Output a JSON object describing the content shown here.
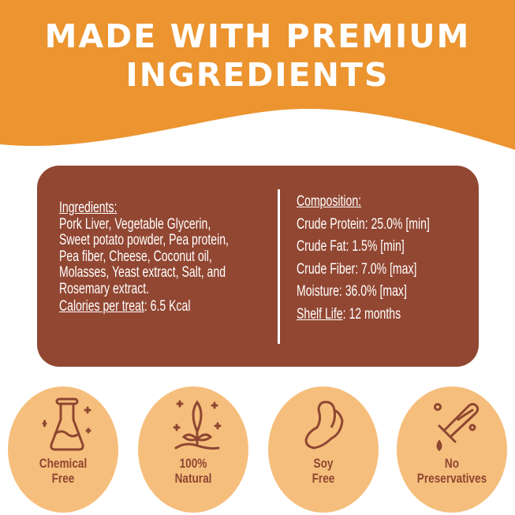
{
  "header": {
    "title_line1": "MADE WITH PREMIUM",
    "title_line2": "INGREDIENTS",
    "bg_color": "#EC9430"
  },
  "panel": {
    "bg_color": "#924732",
    "ingredients": {
      "heading": "Ingredients:",
      "lines": [
        "Pork Liver, Vegetable Glycerin,",
        "Sweet potato powder, Pea protein,",
        "Pea fiber, Cheese, Coconut oil,",
        "Molasses, Yeast extract, Salt, and",
        "Rosemary extract."
      ],
      "calories_label": "Calories per treat",
      "calories_value": ": 6.5 Kcal"
    },
    "composition": {
      "heading": "Composition:",
      "items": [
        "Crude Protein: 25.0% [min]",
        "Crude Fat: 1.5% [min]",
        "Crude Fiber: 7.0% [max]",
        "Moisture: 36.0% [max]"
      ],
      "shelf_label": "Shelf Life",
      "shelf_value": ": 12 months"
    }
  },
  "badges": [
    {
      "icon": "flask-icon",
      "line1": "Chemical",
      "line2": "Free"
    },
    {
      "icon": "sprout-icon",
      "line1": "100%",
      "line2": "Natural"
    },
    {
      "icon": "soybean-icon",
      "line1": "Soy",
      "line2": "Free"
    },
    {
      "icon": "test-tube-icon",
      "line1": "No",
      "line2": "Preservatives"
    }
  ]
}
